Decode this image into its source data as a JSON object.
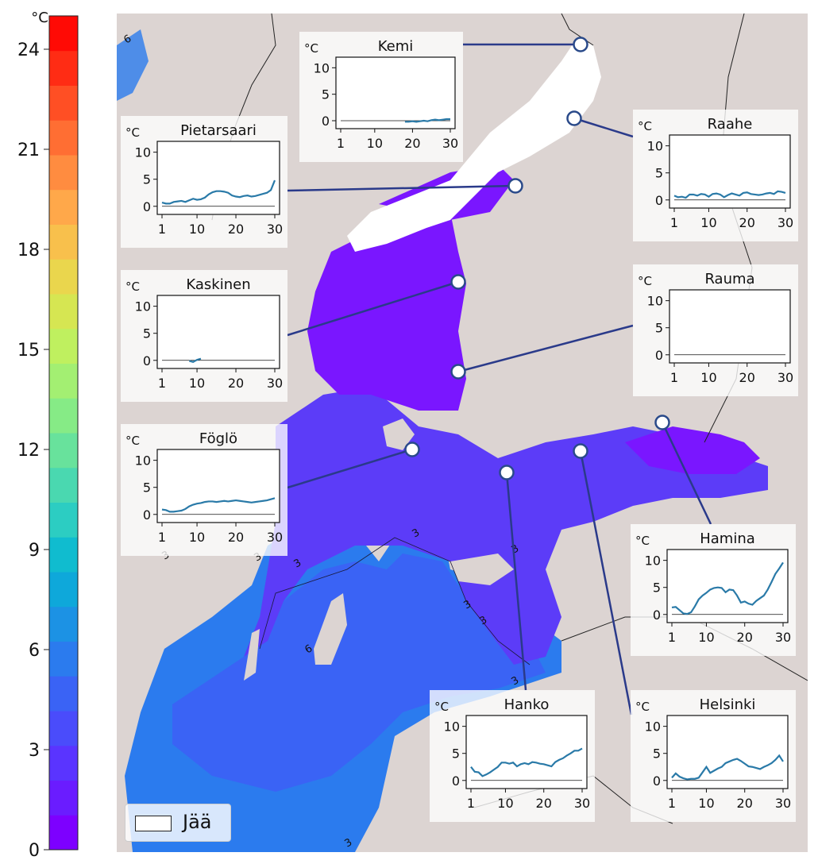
{
  "colorbar": {
    "unit": "°C",
    "ticks": [
      "0",
      "3",
      "6",
      "9",
      "12",
      "15",
      "18",
      "21",
      "24"
    ],
    "colors": [
      "#7d00ff",
      "#6a1cff",
      "#5a34ff",
      "#4a4cfb",
      "#3a63f5",
      "#2b7bee",
      "#1c92e4",
      "#0ea8da",
      "#10bccf",
      "#2ccdc2",
      "#4ad8b0",
      "#68e29c",
      "#86eb86",
      "#a3ef72",
      "#bff05f",
      "#d6e652",
      "#ead64d",
      "#f8c04c",
      "#ffa84a",
      "#ff8c40",
      "#ff6e33",
      "#ff4f24",
      "#ff2c14",
      "#ff0a05"
    ]
  },
  "map": {
    "ice_color": "#ffffff",
    "land_color": "#dcd4d2",
    "north_sea_color": "#7a16ff",
    "mid_sea_color": "#5c3cf8",
    "south_sea_color": "#3a63f5",
    "coast_water_color": "#2b7bee",
    "isoline_labels": [
      "6",
      "3",
      "3",
      "3",
      "3",
      "3",
      "3",
      "3",
      "6",
      "3",
      "3",
      "3"
    ]
  },
  "legend": {
    "label": "Jää"
  },
  "insets": {
    "x_ticks": [
      "1",
      "10",
      "20",
      "30"
    ],
    "y_ticks": [
      "0",
      "5",
      "10"
    ],
    "unit": "°C",
    "line_color": "#2a7aa8"
  },
  "stations": [
    {
      "name": "Kemi",
      "series": [
        null,
        null,
        null,
        null,
        null,
        null,
        null,
        null,
        null,
        null,
        null,
        null,
        null,
        null,
        null,
        null,
        null,
        -0.2,
        -0.2,
        -0.1,
        -0.2,
        -0.1,
        0,
        -0.1,
        0.1,
        0.2,
        0.1,
        0.2,
        0.3,
        0.3
      ]
    },
    {
      "name": "Pietarsaari",
      "series": [
        0.7,
        0.5,
        0.5,
        0.8,
        0.9,
        1.0,
        0.8,
        1.1,
        1.4,
        1.2,
        1.3,
        1.6,
        2.2,
        2.6,
        2.8,
        2.8,
        2.7,
        2.5,
        2.0,
        1.8,
        1.7,
        1.9,
        2.0,
        1.8,
        1.9,
        2.1,
        2.3,
        2.5,
        3.0,
        4.8
      ]
    },
    {
      "name": "Raahe",
      "series": [
        0.8,
        0.5,
        0.6,
        0.4,
        1.0,
        1.0,
        0.8,
        1.1,
        1.0,
        0.6,
        1.1,
        1.2,
        1.0,
        0.5,
        0.9,
        1.2,
        1.0,
        0.8,
        1.3,
        1.4,
        1.1,
        1.0,
        0.9,
        1.0,
        1.2,
        1.3,
        1.1,
        1.6,
        1.5,
        1.3
      ]
    },
    {
      "name": "Kaskinen",
      "series": [
        null,
        null,
        null,
        null,
        null,
        null,
        null,
        -0.1,
        -0.3,
        0.1,
        0.3,
        null,
        null,
        null,
        null,
        null,
        null,
        null,
        null,
        null,
        null,
        null,
        null,
        null,
        null,
        null,
        null,
        null,
        null,
        null
      ]
    },
    {
      "name": "Rauma",
      "series": []
    },
    {
      "name": "Föglö",
      "series": [
        0.9,
        0.8,
        0.5,
        0.5,
        0.6,
        0.7,
        1.0,
        1.5,
        1.8,
        2.0,
        2.1,
        2.3,
        2.4,
        2.4,
        2.3,
        2.4,
        2.5,
        2.4,
        2.5,
        2.6,
        2.5,
        2.4,
        2.3,
        2.2,
        2.3,
        2.4,
        2.5,
        2.6,
        2.8,
        3.0
      ]
    },
    {
      "name": "Hamina",
      "series": [
        1.3,
        1.4,
        0.8,
        0.2,
        0.1,
        0.4,
        1.5,
        2.8,
        3.5,
        4.0,
        4.6,
        4.9,
        5.0,
        4.9,
        4.1,
        4.6,
        4.5,
        3.5,
        2.2,
        2.4,
        2.0,
        1.8,
        2.5,
        3.0,
        3.5,
        4.6,
        6.0,
        7.5,
        8.5,
        9.6
      ]
    },
    {
      "name": "Hanko",
      "series": [
        2.5,
        1.6,
        1.5,
        0.8,
        1.1,
        1.5,
        2.0,
        2.5,
        3.3,
        3.3,
        3.1,
        3.3,
        2.6,
        3.0,
        3.2,
        3.0,
        3.4,
        3.3,
        3.1,
        3.0,
        2.8,
        2.6,
        3.4,
        3.8,
        4.1,
        4.6,
        5.0,
        5.5,
        5.5,
        5.9
      ]
    },
    {
      "name": "Helsinki",
      "series": [
        0.5,
        1.3,
        0.7,
        0.4,
        0.2,
        0.3,
        0.3,
        0.5,
        1.5,
        2.5,
        1.4,
        1.8,
        2.2,
        2.5,
        3.2,
        3.5,
        3.8,
        4.0,
        3.6,
        3.1,
        2.6,
        2.5,
        2.3,
        2.1,
        2.5,
        2.8,
        3.2,
        3.8,
        4.6,
        3.5
      ]
    }
  ]
}
